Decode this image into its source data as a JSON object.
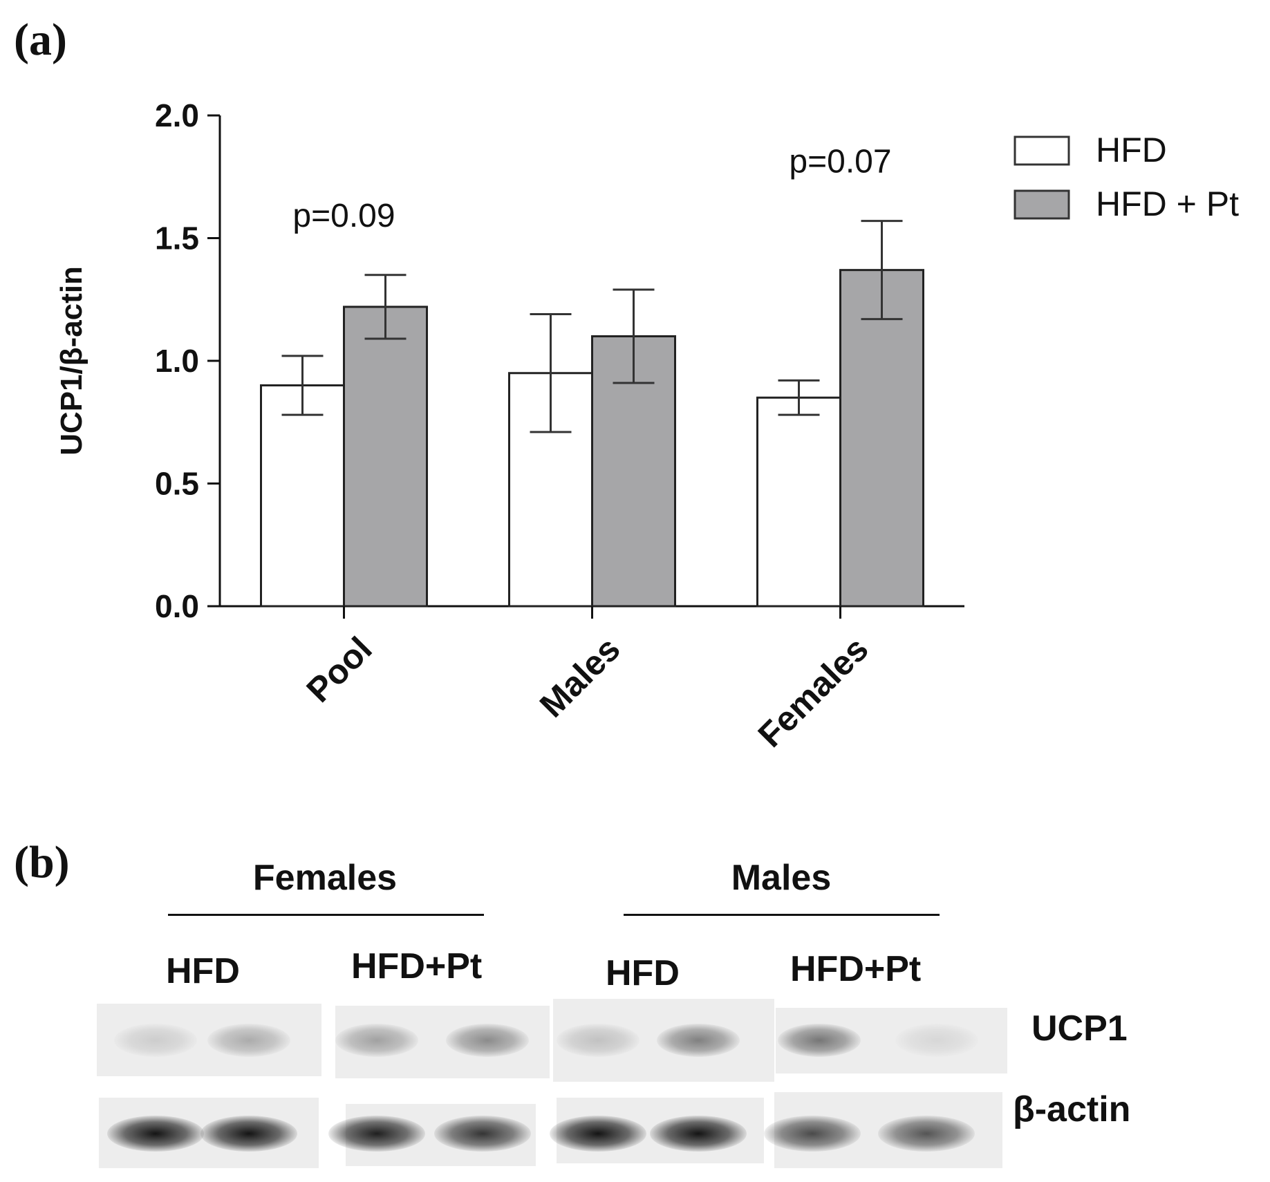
{
  "panel_a_label": "(a)",
  "panel_b_label": "(b)",
  "chart_data": {
    "type": "bar",
    "categories": [
      "Pool",
      "Males",
      "Females"
    ],
    "ylabel": "UCP1/β-actin",
    "xlabel": "",
    "ylim": [
      0,
      2.0
    ],
    "yticks": [
      "0.0",
      "0.5",
      "1.0",
      "1.5",
      "2.0"
    ],
    "legend_position": "top-right",
    "series": [
      {
        "name": "HFD",
        "color": "#ffffff",
        "values": [
          0.9,
          0.95,
          0.85
        ],
        "errors": [
          0.12,
          0.24,
          0.07
        ]
      },
      {
        "name": "HFD + Pt",
        "color": "#a6a6a8",
        "values": [
          1.22,
          1.1,
          1.37
        ],
        "errors": [
          0.13,
          0.19,
          0.2
        ]
      }
    ],
    "annotations": [
      {
        "text": "p=0.09",
        "category": "Pool"
      },
      {
        "text": "p=0.07",
        "category": "Females"
      }
    ]
  },
  "western_blot": {
    "groups": [
      {
        "title": "Females",
        "lanes": [
          "HFD",
          "HFD+Pt"
        ]
      },
      {
        "title": "Males",
        "lanes": [
          "HFD",
          "HFD+Pt"
        ]
      }
    ],
    "proteins": [
      "UCP1",
      "β-actin"
    ],
    "ucp1_intensity": [
      0.15,
      0.3,
      0.35,
      0.45,
      0.2,
      0.5,
      0.55,
      0.1
    ],
    "actin_intensity": [
      1.0,
      1.0,
      0.95,
      0.85,
      1.0,
      1.0,
      0.75,
      0.7
    ]
  }
}
